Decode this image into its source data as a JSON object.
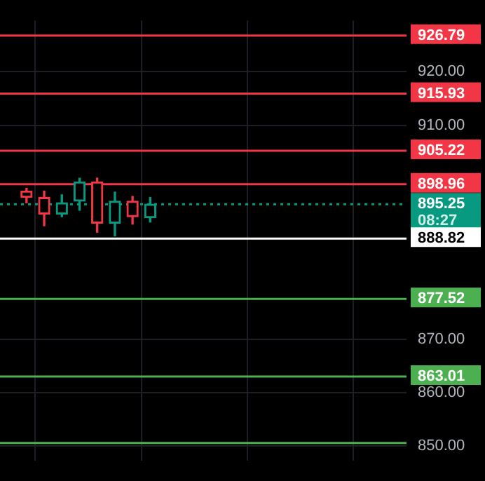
{
  "chart_data": {
    "type": "candlestick",
    "categories": [
      null,
      null,
      null,
      null,
      null,
      null,
      null,
      null,
      null,
      null,
      null,
      null,
      null,
      null,
      null,
      null,
      null,
      null,
      null,
      null,
      null,
      null,
      null
    ],
    "ohlc": [
      null,
      [
        897.7,
        898.2,
        895.5,
        896.5
      ],
      [
        896.5,
        897.7,
        891.2,
        893.4
      ],
      [
        893.4,
        897.0,
        892.9,
        895.5
      ],
      [
        895.8,
        900.1,
        894.1,
        899.4
      ],
      [
        899.4,
        900.1,
        890.0,
        891.7
      ],
      [
        891.7,
        897.5,
        889.3,
        895.8
      ],
      [
        895.8,
        896.7,
        891.5,
        892.9
      ],
      [
        892.7,
        896.5,
        891.9,
        895.25
      ],
      null,
      null,
      null,
      null,
      null,
      null,
      null,
      null,
      null,
      null,
      null,
      null,
      null,
      null
    ],
    "colors": [
      null,
      "#f23645",
      "#f23645",
      "#089981",
      "#089981",
      "#f23645",
      "#089981",
      "#f23645",
      "#089981",
      null,
      null,
      null,
      null,
      null,
      null,
      null,
      null,
      null,
      null,
      null,
      null,
      null,
      null
    ],
    "ylim": [
      847.3,
      929.6
    ],
    "yticks": [
      {
        "value": 850,
        "label": "850.00"
      },
      {
        "value": 860,
        "label": "860.00"
      },
      {
        "value": 870,
        "label": "870.00"
      },
      {
        "value": 910,
        "label": "910.00"
      },
      {
        "value": 920,
        "label": "920.00"
      }
    ],
    "tick_labels": "y",
    "grid": true,
    "legend": false,
    "ref_lines": [
      {
        "axis": "y",
        "value": 926.79,
        "label": "926.79",
        "color": "#f23645"
      },
      {
        "axis": "y",
        "value": 915.93,
        "label": "915.93",
        "color": "#f23645"
      },
      {
        "axis": "y",
        "value": 905.22,
        "label": "905.22",
        "color": "#f23645"
      },
      {
        "axis": "y",
        "value": 898.96,
        "label": "898.96",
        "color": "#f23645"
      },
      {
        "axis": "y",
        "value": 895.25,
        "label": "895.25",
        "color": "#089981",
        "line_style": "dotted"
      },
      {
        "axis": "y",
        "value": 888.82,
        "label": "888.82",
        "color": "#ffffff"
      },
      {
        "axis": "y",
        "value": 877.52,
        "label": "877.52",
        "color": "#4caf50"
      },
      {
        "axis": "y",
        "value": 863.01,
        "label": "863.01",
        "color": "#4caf50"
      },
      {
        "axis": "y",
        "value": 850.6,
        "label": null,
        "color": "#4caf50"
      }
    ],
    "annotations": [
      "08:27"
    ]
  }
}
